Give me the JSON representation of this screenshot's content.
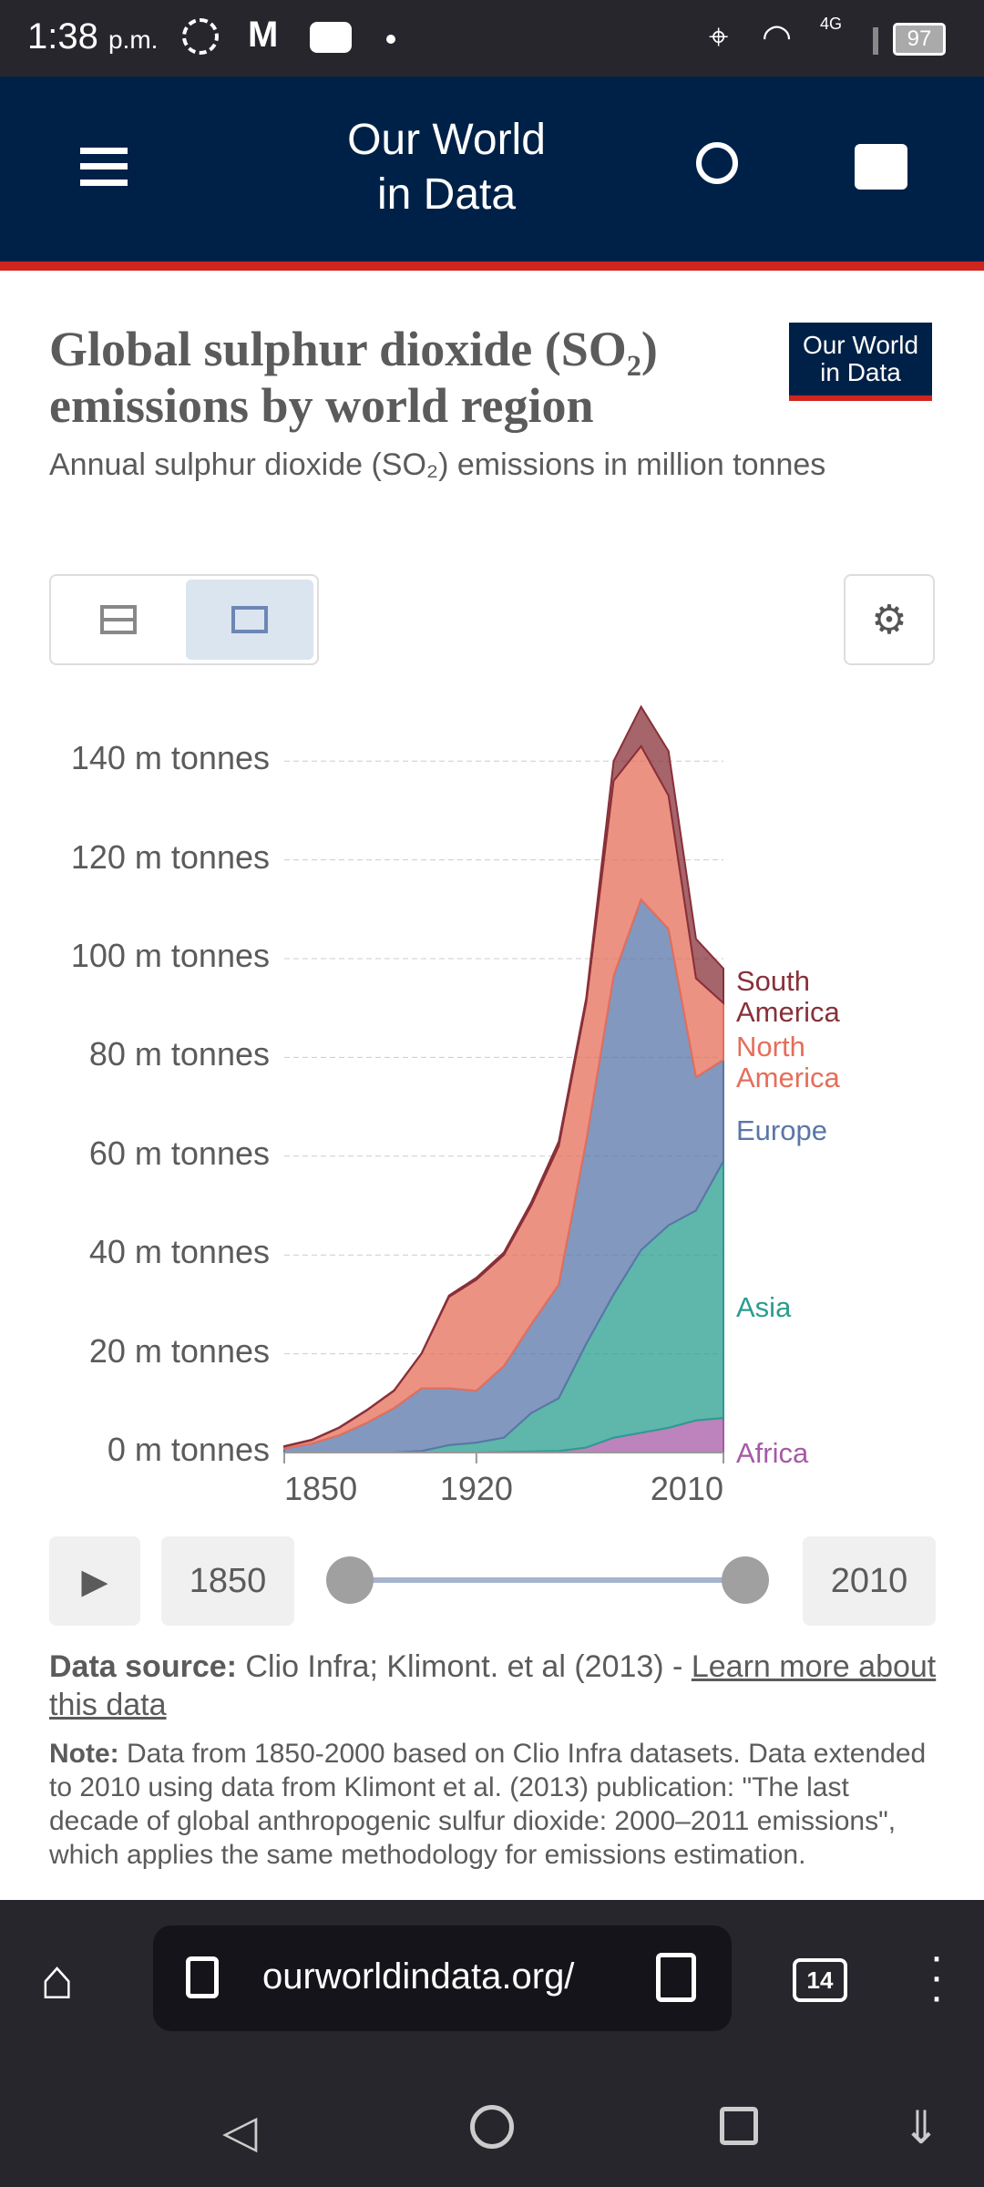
{
  "status": {
    "time": "1:38",
    "ampm": "p.m.",
    "network": "4G",
    "battery": "97"
  },
  "header": {
    "title_line1": "Our World",
    "title_line2": "in Data"
  },
  "chart_header": {
    "title": "Global sulphur dioxide (SO₂) emissions by world region",
    "subtitle": "Annual sulphur dioxide (SO₂) emissions in million tonnes",
    "logo_line1": "Our World",
    "logo_line2": "in Data"
  },
  "chart_data": {
    "type": "area",
    "stacked": true,
    "x": [
      1850,
      1860,
      1870,
      1880,
      1890,
      1900,
      1910,
      1920,
      1930,
      1940,
      1950,
      1960,
      1970,
      1980,
      1990,
      2000,
      2010
    ],
    "series": [
      {
        "name": "Africa",
        "color": "#a659a6",
        "values": [
          0,
          0,
          0,
          0,
          0,
          0,
          0,
          0,
          0.1,
          0.2,
          0.3,
          1,
          3,
          4,
          5,
          6.5,
          7
        ]
      },
      {
        "name": "Asia",
        "color": "#2a9d8f",
        "values": [
          0,
          0,
          0,
          0,
          0,
          0.3,
          1.5,
          2,
          2.9,
          7.8,
          10.7,
          21,
          29,
          37,
          41,
          42.5,
          52
        ]
      },
      {
        "name": "Europe",
        "color": "#5a76a8",
        "values": [
          0.8,
          1.8,
          3.5,
          6,
          9,
          12.7,
          11.5,
          10.5,
          14.5,
          18,
          23,
          41,
          64.5,
          71,
          60,
          27,
          20.5
        ]
      },
      {
        "name": "North America",
        "color": "#e56e5a",
        "values": [
          0.4,
          0.7,
          1.5,
          2.5,
          3.5,
          7,
          18.5,
          22.5,
          22.5,
          24,
          28,
          28,
          39.5,
          31,
          27,
          20,
          11.5
        ]
      },
      {
        "name": "South America",
        "color": "#883039",
        "values": [
          0.1,
          0.1,
          0.1,
          0.1,
          0.1,
          0.1,
          0.3,
          0.4,
          0.5,
          0.7,
          1,
          1,
          4,
          8,
          9,
          8,
          7
        ]
      }
    ],
    "labels": [
      {
        "l1": "Africa"
      },
      {
        "l1": "Asia"
      },
      {
        "l1": "Europe"
      },
      {
        "l1": "North",
        "l2": "America"
      },
      {
        "l1": "South",
        "l2": "America"
      }
    ],
    "yticks": [
      "0 m tonnes",
      "20 m tonnes",
      "40 m tonnes",
      "60 m tonnes",
      "80 m tonnes",
      "100 m tonnes",
      "120 m tonnes",
      "140 m tonnes"
    ],
    "ylim": [
      0,
      150
    ],
    "xlim": [
      1850,
      2010
    ],
    "xticks": [
      "1850",
      "1920",
      "2010"
    ],
    "grid": "horizontal-dashed"
  },
  "timeline": {
    "start": "1850",
    "end": "2010"
  },
  "source": {
    "label": "Data source:",
    "text": " Clio Infra; Klimont. et al (2013) - ",
    "link": "Learn more about this data"
  },
  "note": {
    "label": "Note:",
    "text": " Data from 1850-2000 based on Clio Infra datasets. Data extended to 2010 using data from Klimont et al. (2013) publication: \"The last decade of global anthropogenic sulfur dioxide: 2000–2011 emissions\", which applies the same methodology for emissions estimation."
  },
  "browser": {
    "url": "ourworldindata.org/",
    "tabs": "14"
  }
}
